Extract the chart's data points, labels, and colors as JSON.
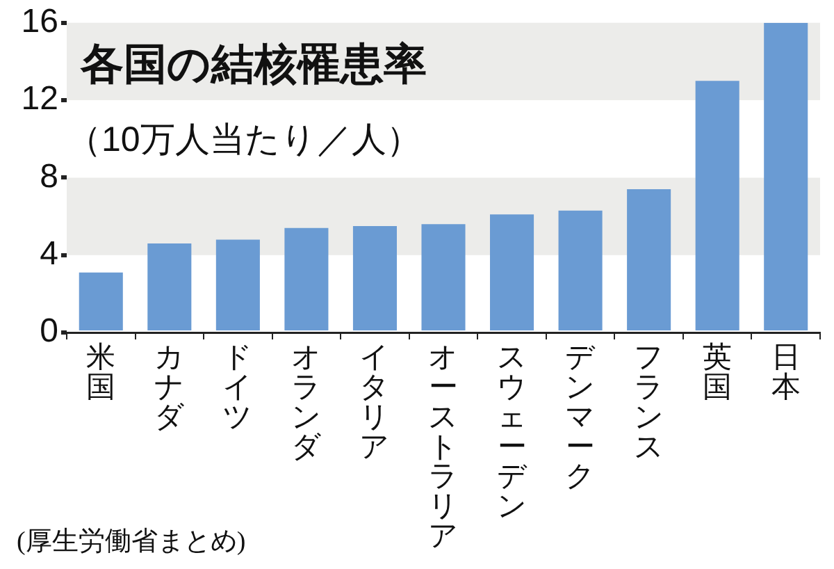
{
  "chart_data": {
    "type": "bar",
    "title": "各国の結核罹患率",
    "subtitle": "（10万人当たり／人）",
    "categories": [
      "米国",
      "カナダ",
      "ドイツ",
      "オランダ",
      "イタリア",
      "オーストラリア",
      "スウェーデン",
      "デンマーク",
      "フランス",
      "英国",
      "日本"
    ],
    "values": [
      3.1,
      4.6,
      4.8,
      5.4,
      5.5,
      5.6,
      6.1,
      6.3,
      7.4,
      13,
      16
    ],
    "color": "#6a9bd3",
    "ylim": [
      0,
      16
    ],
    "yticks": [
      0,
      4,
      8,
      12,
      16
    ],
    "grid": false,
    "bands": [
      {
        "axis": "y",
        "from": 4,
        "to": 8,
        "color": "#ececea"
      },
      {
        "axis": "y",
        "from": 12,
        "to": 16,
        "color": "#ececea"
      }
    ],
    "annotations": [
      "(厚生労働省まとめ)"
    ]
  }
}
